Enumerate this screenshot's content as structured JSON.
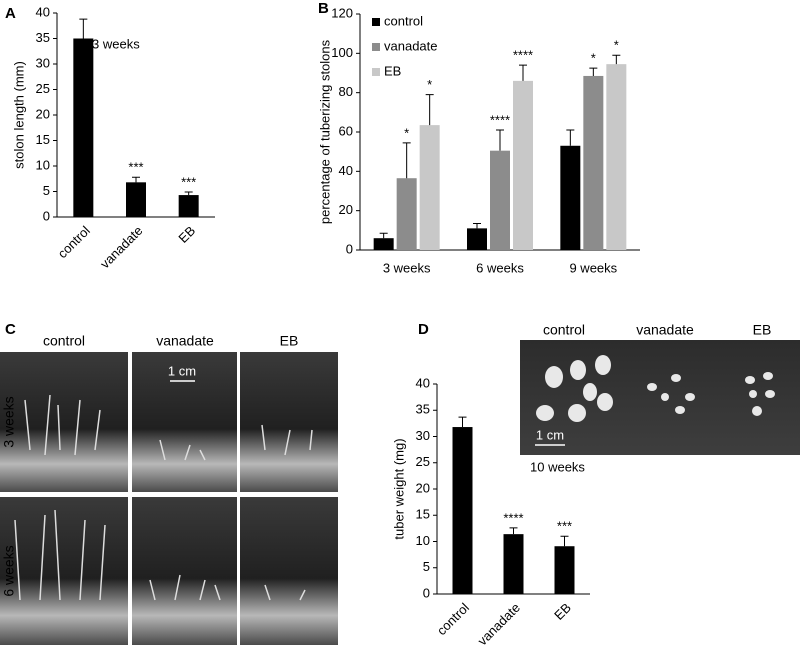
{
  "chart_data": [
    {
      "type": "bar",
      "panel": "A",
      "ylabel": "stolon length (mm)",
      "annotation": "3 weeks",
      "categories": [
        "control",
        "vanadate",
        "EB"
      ],
      "values": [
        35,
        6.8,
        4.3
      ],
      "errors": [
        3.8,
        1.0,
        0.6
      ],
      "significance": [
        null,
        "***",
        "***"
      ],
      "color": "#000000",
      "ylim": [
        0,
        40
      ],
      "yticks": [
        0,
        5,
        10,
        15,
        20,
        25,
        30,
        35,
        40
      ]
    },
    {
      "type": "grouped-bar",
      "panel": "B",
      "ylabel": "percentage of tuberizing stolons",
      "categories": [
        "3 weeks",
        "6 weeks",
        "9 weeks"
      ],
      "series": [
        {
          "name": "control",
          "color": "#000000",
          "values": [
            6,
            11,
            53
          ],
          "errors": [
            2.5,
            2.5,
            8
          ],
          "significance": [
            null,
            null,
            null
          ]
        },
        {
          "name": "vanadate",
          "color": "#8c8c8c",
          "values": [
            36.5,
            50.5,
            88.5
          ],
          "errors": [
            18,
            10.5,
            4
          ],
          "significance": [
            "*",
            "****",
            "*"
          ]
        },
        {
          "name": "EB",
          "color": "#c8c8c8",
          "values": [
            63.5,
            86,
            94.5
          ],
          "errors": [
            15.5,
            8,
            4.5
          ],
          "significance": [
            "*",
            "****",
            "*"
          ]
        }
      ],
      "legend": "top-left",
      "ylim": [
        0,
        120
      ],
      "yticks": [
        0,
        20,
        40,
        60,
        80,
        100,
        120
      ]
    },
    {
      "type": "bar",
      "panel": "D",
      "ylabel": "tuber weight (mg)",
      "categories": [
        "control",
        "vanadate",
        "EB"
      ],
      "values": [
        31.8,
        11.4,
        9.1
      ],
      "errors": [
        1.9,
        1.2,
        1.9
      ],
      "significance": [
        null,
        "****",
        "***"
      ],
      "color": "#000000",
      "ylim": [
        0,
        40
      ],
      "yticks": [
        0,
        5,
        10,
        15,
        20,
        25,
        30,
        35,
        40
      ]
    }
  ],
  "photos": {
    "panel": "C",
    "columns": [
      "control",
      "vanadate",
      "EB"
    ],
    "rows": [
      "3 weeks",
      "6 weeks"
    ],
    "scale": "1 cm"
  },
  "tuber_photo": {
    "columns": [
      "control",
      "vanadate",
      "EB"
    ],
    "scale": "1 cm",
    "caption": "10 weeks"
  }
}
